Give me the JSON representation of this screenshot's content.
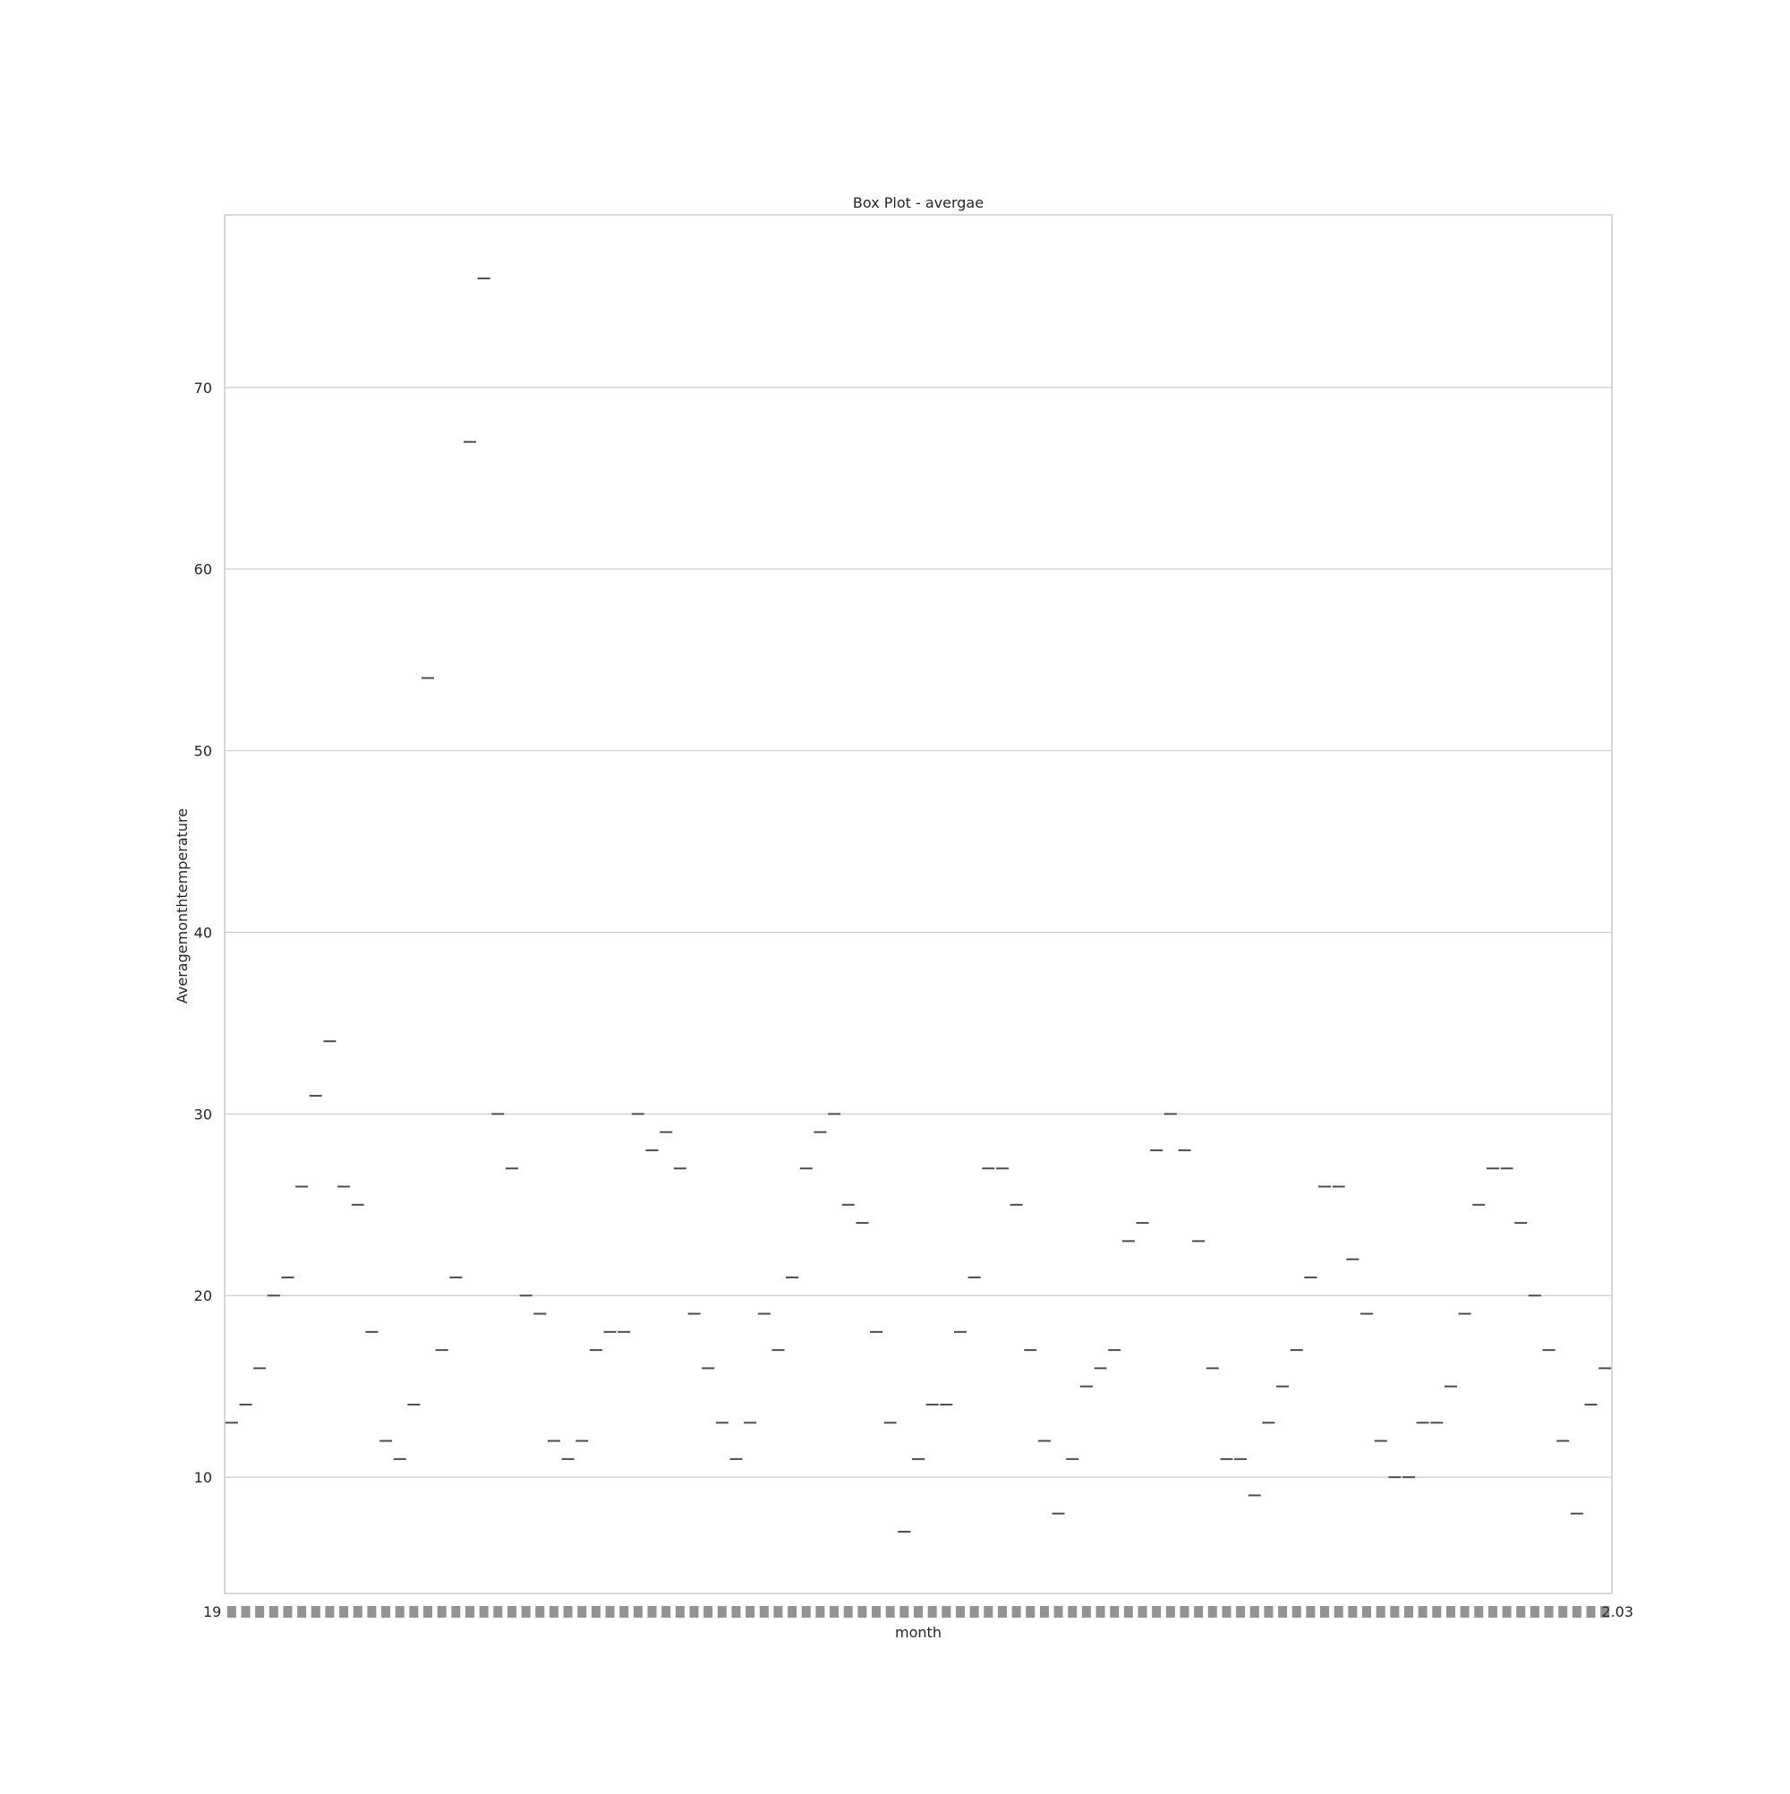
{
  "chart_data": {
    "type": "box",
    "title": "Box Plot - avergae",
    "xlabel": "month",
    "ylabel": "Averagemonthtemperature",
    "ylim": [
      3.6,
      79.5
    ],
    "yticks": [
      10,
      20,
      30,
      40,
      50,
      60,
      70
    ],
    "grid": "horizontal",
    "x_tick_labels_legible": false,
    "x_tick_labels_visible_fragments": {
      "first": "19",
      "last": "2.03"
    },
    "categories_count": 99,
    "values": [
      13,
      14,
      16,
      20,
      21,
      26,
      31,
      34,
      26,
      25,
      18,
      12,
      11,
      14,
      54,
      17,
      21,
      67,
      76,
      30,
      27,
      20,
      19,
      12,
      11,
      12,
      17,
      18,
      18,
      30,
      28,
      29,
      27,
      19,
      16,
      13,
      11,
      13,
      19,
      17,
      21,
      27,
      29,
      30,
      25,
      24,
      18,
      13,
      7,
      11,
      14,
      14,
      18,
      21,
      27,
      27,
      25,
      17,
      12,
      8,
      11,
      15,
      16,
      17,
      23,
      24,
      28,
      30,
      28,
      23,
      16,
      11,
      11,
      9,
      13,
      15,
      17,
      21,
      26,
      26,
      22,
      19,
      12,
      10,
      10,
      13,
      13,
      15,
      19,
      25,
      27,
      27,
      24,
      20,
      17,
      12,
      8,
      14,
      16
    ],
    "colors": {
      "grid": "#cccccc",
      "frame": "#cccccc",
      "median": "#4d4d4d",
      "text": "#262626"
    }
  }
}
